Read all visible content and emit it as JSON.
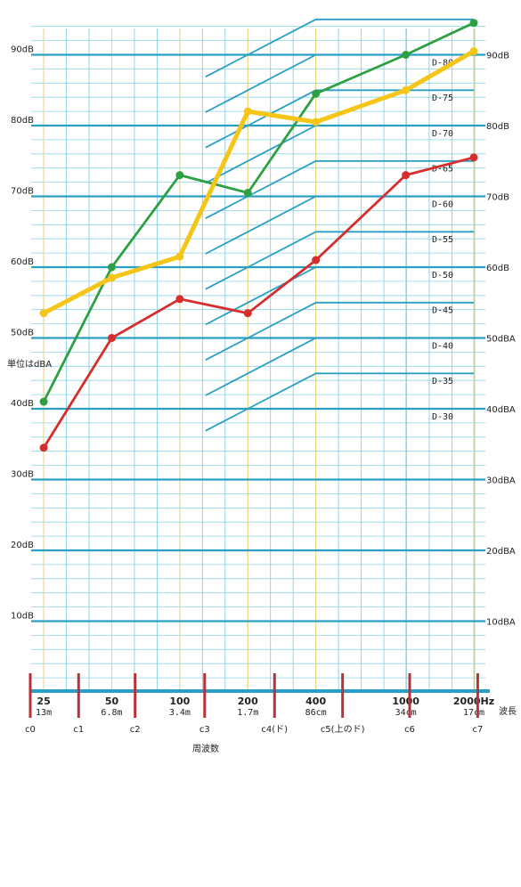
{
  "chart_data": {
    "type": "line",
    "x_scale": "log",
    "xlim": [
      22,
      2250
    ],
    "ylim": [
      0,
      95
    ],
    "grid": true,
    "legend": "none",
    "unit_note": "単位はdBA",
    "xaxis_title": "周波数",
    "wavelength_title": "波長",
    "y_left_ticks": [
      {
        "v": 10,
        "label": "10dB"
      },
      {
        "v": 20,
        "label": "20dB"
      },
      {
        "v": 30,
        "label": "30dB"
      },
      {
        "v": 40,
        "label": "40dB"
      },
      {
        "v": 50,
        "label": "50dB"
      },
      {
        "v": 60,
        "label": "60dB"
      },
      {
        "v": 70,
        "label": "70dB"
      },
      {
        "v": 80,
        "label": "80dB"
      },
      {
        "v": 90,
        "label": "90dB"
      }
    ],
    "y_right_ticks": [
      {
        "v": 10,
        "label": "10dBA"
      },
      {
        "v": 20,
        "label": "20dBA"
      },
      {
        "v": 30,
        "label": "30dBA"
      },
      {
        "v": 40,
        "label": "40dBA"
      },
      {
        "v": 50,
        "label": "50dBA"
      },
      {
        "v": 60,
        "label": "60dB"
      },
      {
        "v": 70,
        "label": "70dB"
      },
      {
        "v": 80,
        "label": "80dB"
      },
      {
        "v": 90,
        "label": "90dB"
      }
    ],
    "x_ticks": [
      {
        "f": 25,
        "label": "25",
        "wavelength": "13m"
      },
      {
        "f": 50,
        "label": "50",
        "wavelength": "6.8m"
      },
      {
        "f": 100,
        "label": "100",
        "wavelength": "3.4m"
      },
      {
        "f": 200,
        "label": "200",
        "wavelength": "1.7m"
      },
      {
        "f": 400,
        "label": "400",
        "wavelength": "86cm"
      },
      {
        "f": 1000,
        "label": "1000",
        "wavelength": "34cm"
      },
      {
        "f": 2000,
        "label": "2000Hz",
        "wavelength": "17cm"
      }
    ],
    "octave_marks": [
      {
        "f": 22,
        "label": "c0"
      },
      {
        "f": 36,
        "label": "c1"
      },
      {
        "f": 64,
        "label": "c2"
      },
      {
        "f": 130,
        "label": "c3"
      },
      {
        "f": 265,
        "label": "c4(ド)"
      },
      {
        "f": 530,
        "label": "c5(上のド)"
      },
      {
        "f": 1050,
        "label": "c6"
      },
      {
        "f": 2100,
        "label": "c7"
      }
    ],
    "d_curves": [
      {
        "label": "D-30",
        "y2000": 45
      },
      {
        "label": "D-35",
        "y2000": 50
      },
      {
        "label": "D-40",
        "y2000": 55
      },
      {
        "label": "D-45",
        "y2000": 60
      },
      {
        "label": "D-50",
        "y2000": 65
      },
      {
        "label": "D-55",
        "y2000": 70
      },
      {
        "label": "D-60",
        "y2000": 75
      },
      {
        "label": "D-65",
        "y2000": 80
      },
      {
        "label": "D-70",
        "y2000": 85
      },
      {
        "label": "D-75",
        "y2000": 90
      },
      {
        "label": "D-80",
        "y2000": 95
      }
    ],
    "series": [
      {
        "color": "#2ea043",
        "x": [
          25,
          50,
          100,
          200,
          400,
          1000,
          2000
        ],
        "y": [
          41,
          60,
          73,
          70.5,
          84.5,
          90,
          94.5
        ]
      },
      {
        "color": "#f5c518",
        "x": [
          25,
          50,
          100,
          200,
          400,
          1000,
          2000
        ],
        "y": [
          53.5,
          58.5,
          61.5,
          82,
          80.5,
          85,
          90.5
        ]
      },
      {
        "color": "#d62d2d",
        "x": [
          25,
          50,
          100,
          200,
          400,
          1000,
          2000
        ],
        "y": [
          34.5,
          50,
          55.5,
          53.5,
          61,
          73,
          75.5
        ]
      }
    ]
  }
}
